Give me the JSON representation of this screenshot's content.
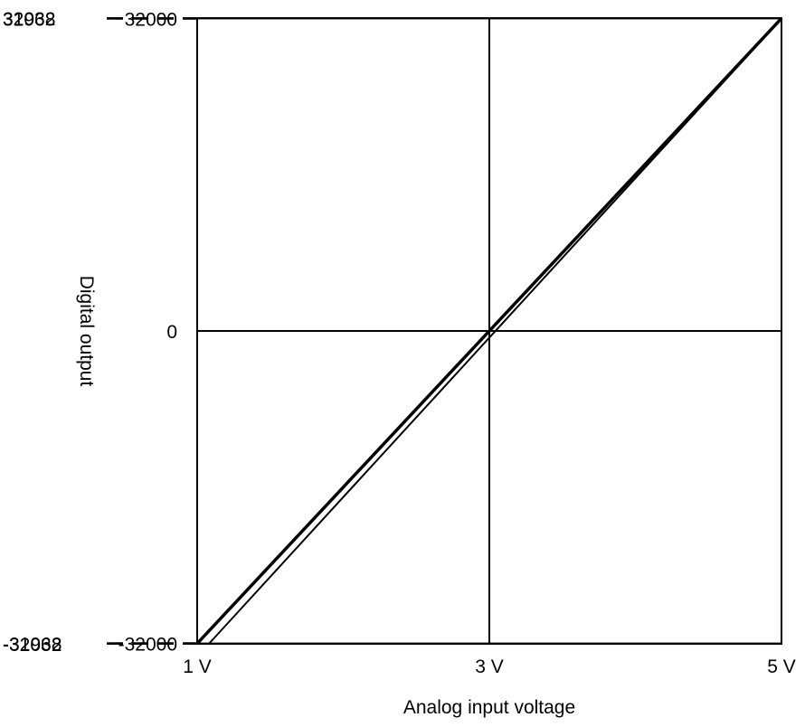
{
  "chart_data": {
    "type": "line",
    "title": "",
    "xlabel": "Analog input voltage",
    "ylabel": "Digital output",
    "xlim": [
      1,
      5
    ],
    "ylim": [
      -32032,
      32032
    ],
    "x_ticks": [
      {
        "value": 1,
        "label": "1 V"
      },
      {
        "value": 3,
        "label": "3 V"
      },
      {
        "value": 5,
        "label": "5 V"
      }
    ],
    "y_ticks": [
      {
        "value": 32032,
        "label": "32032",
        "side": "outside",
        "dashed": true
      },
      {
        "value": 32000,
        "label": "32000",
        "side": "inside",
        "dashed": false
      },
      {
        "value": 31968,
        "label": "31968",
        "side": "outside",
        "dashed": true
      },
      {
        "value": 0,
        "label": "0",
        "side": "inside",
        "dashed": false
      },
      {
        "value": -31968,
        "label": "-31968",
        "side": "outside",
        "dashed": true
      },
      {
        "value": -32000,
        "label": "-32000",
        "side": "inside",
        "dashed": false
      },
      {
        "value": -32032,
        "label": "-32032",
        "side": "outside",
        "dashed": true
      }
    ],
    "reference_lines": {
      "horizontal": [
        32000,
        0,
        -32000
      ],
      "vertical": [
        3
      ]
    },
    "series": [
      {
        "x": [
          1,
          5
        ],
        "y": [
          -31968,
          32000
        ],
        "weight": "thin"
      },
      {
        "x": [
          1,
          5
        ],
        "y": [
          -32000,
          32000
        ],
        "weight": "bold"
      },
      {
        "x": [
          1.08,
          5
        ],
        "y": [
          -32032,
          31968
        ],
        "weight": "thin"
      }
    ]
  }
}
